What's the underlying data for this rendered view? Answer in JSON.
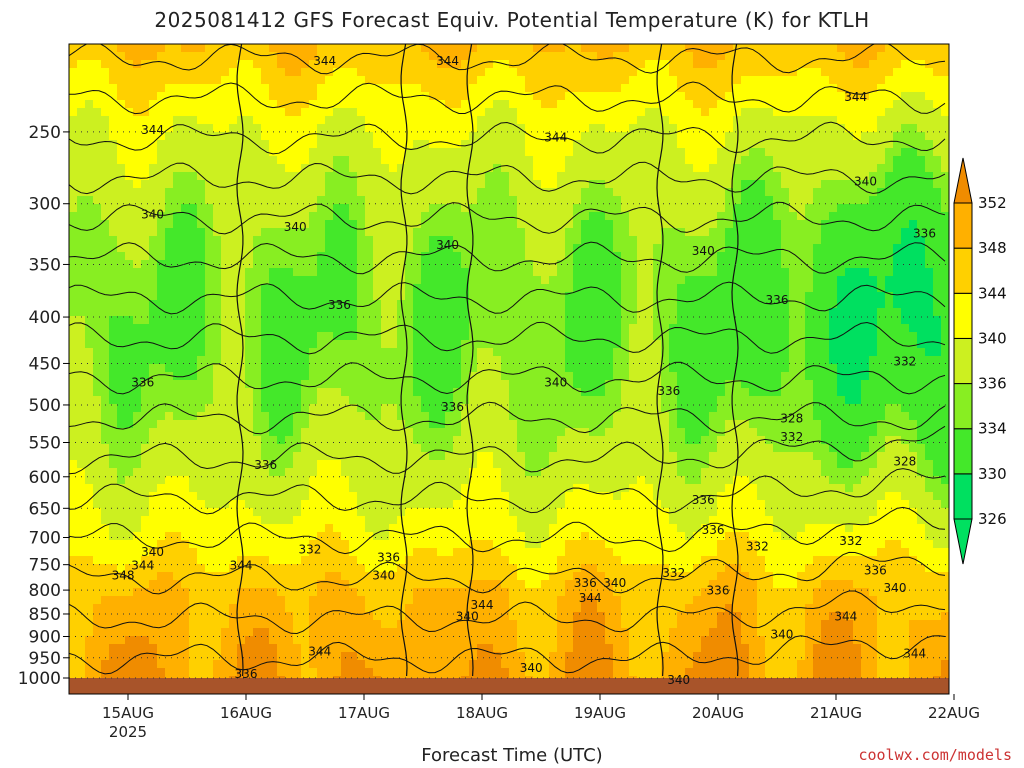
{
  "chart_data": {
    "type": "heatmap",
    "title": "2025081412 GFS Forecast Equiv. Potential Temperature (K) for KTLH",
    "xlabel": "Forecast Time (UTC)",
    "ylabel": "",
    "y_scale": "log-pressure (hPa), inverted",
    "y_ticks": [
      250,
      300,
      350,
      400,
      450,
      500,
      550,
      600,
      650,
      700,
      750,
      800,
      850,
      900,
      950,
      1000
    ],
    "x_ticks": [
      "15AUG",
      "16AUG",
      "17AUG",
      "18AUG",
      "19AUG",
      "20AUG",
      "21AUG",
      "22AUG"
    ],
    "x_sublabel": "2025",
    "colorbar": {
      "levels": [
        326,
        330,
        334,
        336,
        340,
        344,
        348,
        352
      ],
      "colors": [
        "#00e060",
        "#44e82a",
        "#88ee22",
        "#ccf020",
        "#ffff00",
        "#ffd000",
        "#ffb000",
        "#f08c00"
      ]
    },
    "contour_labels": [
      {
        "value": "344",
        "t": "15AUG 05",
        "p": 250
      },
      {
        "value": "340",
        "t": "15AUG 05",
        "p": 310
      },
      {
        "value": "336",
        "t": "15AUG 03",
        "p": 475
      },
      {
        "value": "340",
        "t": "15AUG 05",
        "p": 730
      },
      {
        "value": "344",
        "t": "15AUG 03",
        "p": 755
      },
      {
        "value": "348",
        "t": "14AUG 23",
        "p": 775
      },
      {
        "value": "344",
        "t": "15AUG 23",
        "p": 755
      },
      {
        "value": "336",
        "t": "16AUG 04",
        "p": 585
      },
      {
        "value": "336",
        "t": "16AUG 00",
        "p": 995
      },
      {
        "value": "344",
        "t": "16AUG 16",
        "p": 210
      },
      {
        "value": "340",
        "t": "16AUG 10",
        "p": 320
      },
      {
        "value": "336",
        "t": "16AUG 19",
        "p": 390
      },
      {
        "value": "332",
        "t": "16AUG 13",
        "p": 725
      },
      {
        "value": "344",
        "t": "16AUG 15",
        "p": 940
      },
      {
        "value": "344",
        "t": "17AUG 17",
        "p": 210
      },
      {
        "value": "340",
        "t": "17AUG 17",
        "p": 335
      },
      {
        "value": "336",
        "t": "17AUG 18",
        "p": 505
      },
      {
        "value": "336",
        "t": "16AUG 29",
        "p": 740
      },
      {
        "value": "340",
        "t": "17AUG 04",
        "p": 775
      },
      {
        "value": "340",
        "t": "17AUG 21",
        "p": 860
      },
      {
        "value": "344",
        "t": "17AUG 24",
        "p": 835
      },
      {
        "value": "344",
        "t": "18AUG 15",
        "p": 255
      },
      {
        "value": "340",
        "t": "18AUG 15",
        "p": 475
      },
      {
        "value": "340",
        "t": "18AUG 10",
        "p": 980
      },
      {
        "value": "336",
        "t": "18AUG 21",
        "p": 790
      },
      {
        "value": "344",
        "t": "18AUG 22",
        "p": 820
      },
      {
        "value": "340",
        "t": "19AUG 03",
        "p": 790
      },
      {
        "value": "336",
        "t": "19AUG 14",
        "p": 485
      },
      {
        "value": "332",
        "t": "19AUG 15",
        "p": 770
      },
      {
        "value": "340",
        "t": "19AUG 21",
        "p": 340
      },
      {
        "value": "336",
        "t": "19AUG 21",
        "p": 640
      },
      {
        "value": "336",
        "t": "19AUG 23",
        "p": 690
      },
      {
        "value": "336",
        "t": "19AUG 24",
        "p": 805
      },
      {
        "value": "340",
        "t": "19AUG 16",
        "p": 1010
      },
      {
        "value": "336",
        "t": "20AUG 12",
        "p": 385
      },
      {
        "value": "328",
        "t": "20AUG 15",
        "p": 520
      },
      {
        "value": "332",
        "t": "20AUG 15",
        "p": 545
      },
      {
        "value": "332",
        "t": "20AUG 08",
        "p": 720
      },
      {
        "value": "340",
        "t": "20AUG 13",
        "p": 900
      },
      {
        "value": "344",
        "t": "20AUG 28",
        "p": 230
      },
      {
        "value": "340",
        "t": "20AUG 30",
        "p": 285
      },
      {
        "value": "336",
        "t": "21AUG 18",
        "p": 325
      },
      {
        "value": "332",
        "t": "21AUG 14",
        "p": 450
      },
      {
        "value": "328",
        "t": "21AUG 14",
        "p": 580
      },
      {
        "value": "332",
        "t": "21AUG 03",
        "p": 710
      },
      {
        "value": "336",
        "t": "21AUG 08",
        "p": 765
      },
      {
        "value": "340",
        "t": "21AUG 12",
        "p": 800
      },
      {
        "value": "344",
        "t": "20AUG 26",
        "p": 860
      },
      {
        "value": "344",
        "t": "21AUG 16",
        "p": 945
      }
    ]
  },
  "credit": "coolwx.com/models"
}
